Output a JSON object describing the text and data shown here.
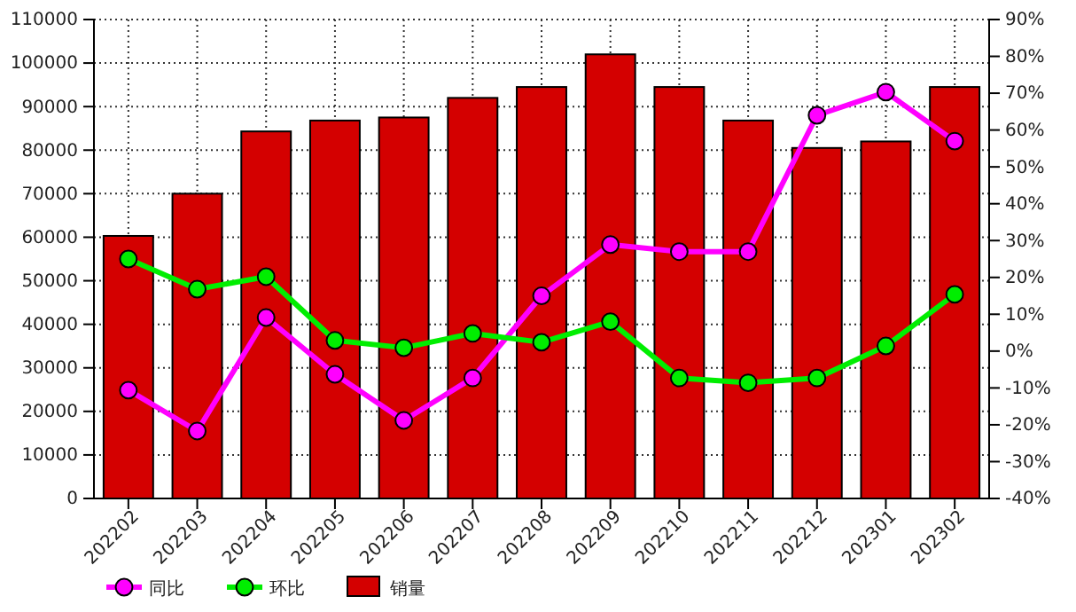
{
  "chart_data": {
    "type": "bar",
    "categories": [
      "202202",
      "202203",
      "202204",
      "202205",
      "202206",
      "202207",
      "202208",
      "202209",
      "202210",
      "202211",
      "202212",
      "202301",
      "202302"
    ],
    "series": [
      {
        "name": "同比",
        "type": "line",
        "axis": "y2",
        "color": "#ff00ff",
        "values": [
          -10.6,
          -21.7,
          9.1,
          -6.3,
          -18.8,
          -7.3,
          15,
          28.9,
          27,
          27,
          64,
          70.3,
          57
        ]
      },
      {
        "name": "环比",
        "type": "line",
        "axis": "y2",
        "color": "#00ee00",
        "values": [
          25,
          16.8,
          20.2,
          2.9,
          0.9,
          4.8,
          2.4,
          8,
          -7.3,
          -8.6,
          -7.3,
          1.4,
          15.4
        ]
      },
      {
        "name": "销量",
        "color": "#d40000",
        "values": [
          60300,
          70000,
          84300,
          86800,
          87500,
          92000,
          94500,
          102000,
          94500,
          86800,
          80500,
          82000,
          94500
        ]
      }
    ],
    "ylim": [
      0,
      110000
    ],
    "yticks": [
      0,
      10000,
      20000,
      30000,
      40000,
      50000,
      60000,
      70000,
      80000,
      90000,
      100000,
      110000
    ],
    "y2lim": [
      -40,
      90
    ],
    "y2ticks": [
      {
        "value": -40,
        "label": "-40%"
      },
      {
        "value": -30,
        "label": "-30%"
      },
      {
        "value": -20,
        "label": "-20%"
      },
      {
        "value": -10,
        "label": "-10%"
      },
      {
        "value": 0,
        "label": "0%"
      },
      {
        "value": 10,
        "label": "10%"
      },
      {
        "value": 20,
        "label": "20%"
      },
      {
        "value": 30,
        "label": "30%"
      },
      {
        "value": 40,
        "label": "40%"
      },
      {
        "value": 50,
        "label": "50%"
      },
      {
        "value": 60,
        "label": "60%"
      },
      {
        "value": 70,
        "label": "70%"
      },
      {
        "value": 80,
        "label": "80%"
      },
      {
        "value": 90,
        "label": "90%"
      }
    ],
    "grid": true,
    "legend": "bottom left",
    "marker": "circle",
    "line_style": "solid"
  }
}
